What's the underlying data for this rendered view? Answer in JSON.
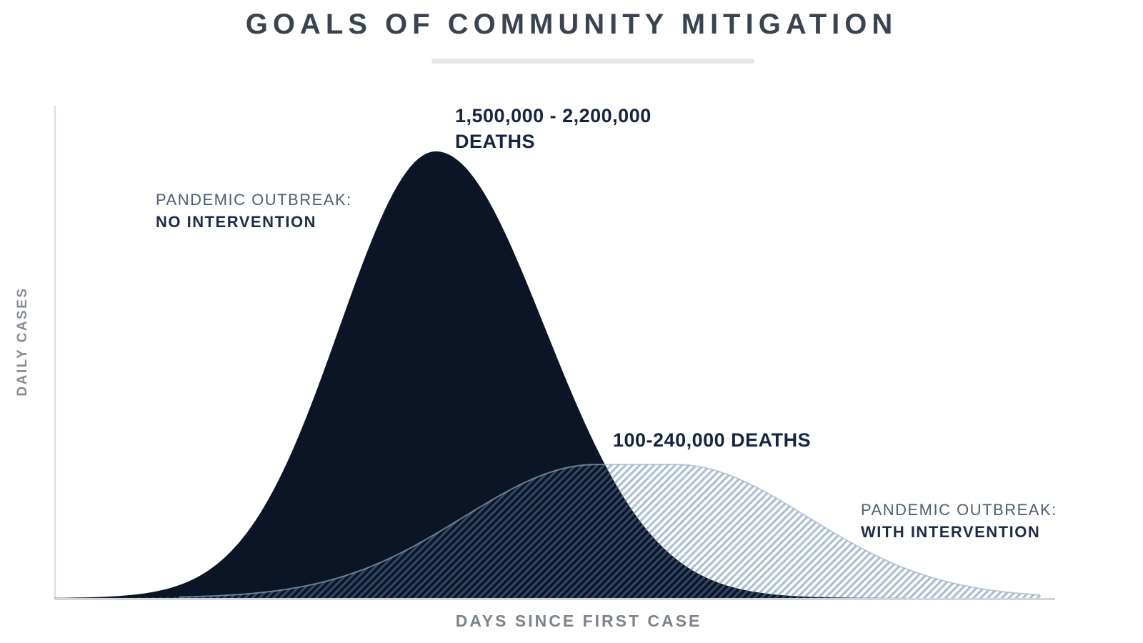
{
  "title": "GOALS OF COMMUNITY MITIGATION",
  "axes": {
    "x_label": "DAYS SINCE FIRST CASE",
    "y_label": "DAILY CASES"
  },
  "annotations": {
    "deaths_no_intervention": {
      "line1": "1,500,000 - 2,200,000",
      "line2": "DEATHS"
    },
    "outbreak_no_intervention": {
      "line1": "PANDEMIC OUTBREAK:",
      "line2": "NO INTERVENTION"
    },
    "deaths_with_intervention": "100-240,000 DEATHS",
    "outbreak_with_intervention": {
      "line1": "PANDEMIC OUTBREAK:",
      "line2": "WITH INTERVENTION"
    }
  },
  "colors": {
    "curve_dark": "#0b1526",
    "hatch_line": "rgba(91,124,168,0.5)",
    "hatch_edge": "rgba(154,178,200,0.65)",
    "axis_line": "#dbe0e5",
    "baseline": "#cdd5dd",
    "title_text": "#3a4450",
    "axis_label_text": "#7b838d",
    "annotation_bold": "#1e2c47",
    "annotation_regular": "#4e5d70",
    "deaths_text": "#152540"
  },
  "chart_data": {
    "type": "area",
    "title": "GOALS OF COMMUNITY MITIGATION",
    "xlabel": "DAYS SINCE FIRST CASE",
    "ylabel": "DAILY CASES",
    "x_axis_ticks": "none (qualitative axis)",
    "y_axis_ticks": "none (qualitative axis)",
    "grid": false,
    "legend_position": "inline-annotations",
    "series": [
      {
        "name": "PANDEMIC OUTBREAK: NO INTERVENTION",
        "annotation": "1,500,000 - 2,200,000 DEATHS",
        "fill_style": "solid",
        "shape": "skewed_gaussian",
        "peak_x_frac": 0.386,
        "peak_height_frac": 0.91,
        "sigma_left_frac": 0.0975,
        "sigma_right_frac": 0.11,
        "plateau_halfwidth_frac": 0
      },
      {
        "name": "PANDEMIC OUTBREAK: WITH INTERVENTION",
        "annotation": "100-240,000 DEATHS",
        "fill_style": "hatched",
        "shape": "plateau_gaussian",
        "peak_x_frac": 0.588,
        "peak_height_frac": 0.272,
        "sigma_left_frac": 0.134,
        "sigma_right_frac": 0.134,
        "plateau_halfwidth_frac": 0.04
      }
    ]
  }
}
